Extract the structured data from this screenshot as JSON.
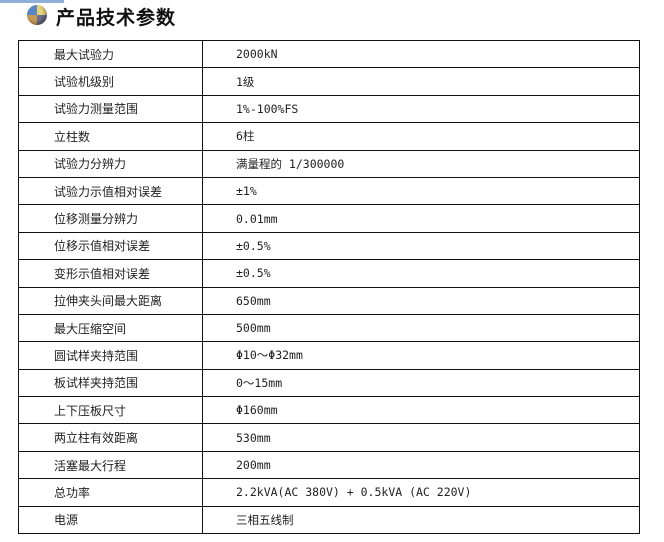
{
  "header": {
    "title": "产品技术参数",
    "icon": "colored-circle-icon"
  },
  "params": [
    {
      "label": "最大试验力",
      "value": "2000kN"
    },
    {
      "label": "试验机级别",
      "value": "1级"
    },
    {
      "label": "试验力测量范围",
      "value": "1%-100%FS"
    },
    {
      "label": "立柱数",
      "value": "6柱"
    },
    {
      "label": "试验力分辨力",
      "value": "满量程的 1/300000"
    },
    {
      "label": "试验力示值相对误差",
      "value": "±1%"
    },
    {
      "label": "位移测量分辨力",
      "value": "0.01mm"
    },
    {
      "label": "位移示值相对误差",
      "value": "±0.5%"
    },
    {
      "label": "变形示值相对误差",
      "value": "±0.5%"
    },
    {
      "label": "拉伸夹头间最大距离",
      "value": "650mm"
    },
    {
      "label": "最大压缩空间",
      "value": "500mm"
    },
    {
      "label": "圆试样夹持范围",
      "value": "Φ10～Φ32mm"
    },
    {
      "label": "板试样夹持范围",
      "value": "0～15mm"
    },
    {
      "label": "上下压板尺寸",
      "value": "Φ160mm"
    },
    {
      "label": "两立柱有效距离",
      "value": "530mm"
    },
    {
      "label": "活塞最大行程",
      "value": "200mm"
    },
    {
      "label": "总功率",
      "value": "2.2kVA(AC 380V) + 0.5kVA (AC 220V)"
    },
    {
      "label": "电源",
      "value": "三相五线制"
    }
  ]
}
